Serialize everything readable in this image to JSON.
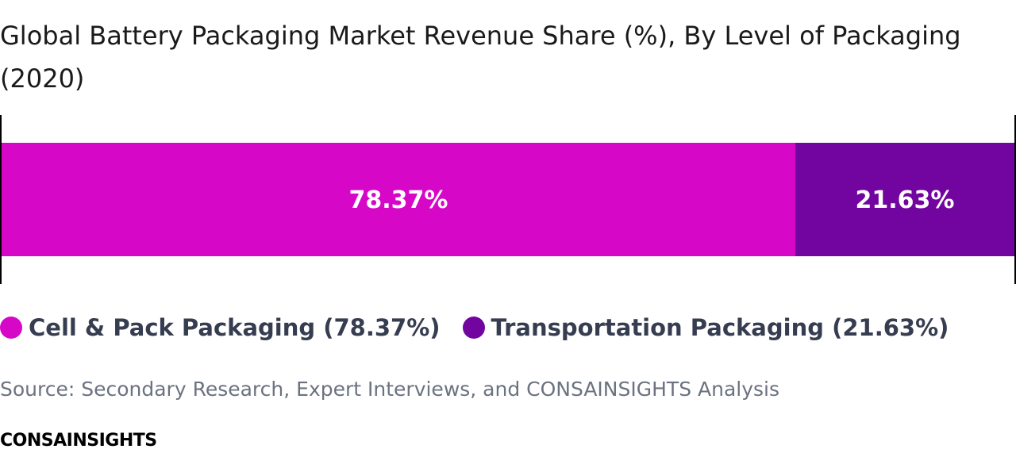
{
  "chart_data": {
    "type": "bar",
    "orientation": "horizontal",
    "stacked": true,
    "title": "Global Battery Packaging Market Revenue Share (%), By Level of Packaging (2020)",
    "xlim": [
      0,
      100
    ],
    "series": [
      {
        "name": "Cell & Pack Packaging (78.37%)",
        "color": "#d707c8",
        "values": [
          78.37
        ],
        "value_labels": [
          "78.37%"
        ]
      },
      {
        "name": "Transportation Packaging (21.63%)",
        "color": "#72059f",
        "values": [
          21.63
        ],
        "value_labels": [
          "21.63%"
        ]
      }
    ]
  },
  "source": "Source: Secondary Research, Expert Interviews, and CONSAINSIGHTS Analysis",
  "brand": "CONSAINSIGHTS"
}
